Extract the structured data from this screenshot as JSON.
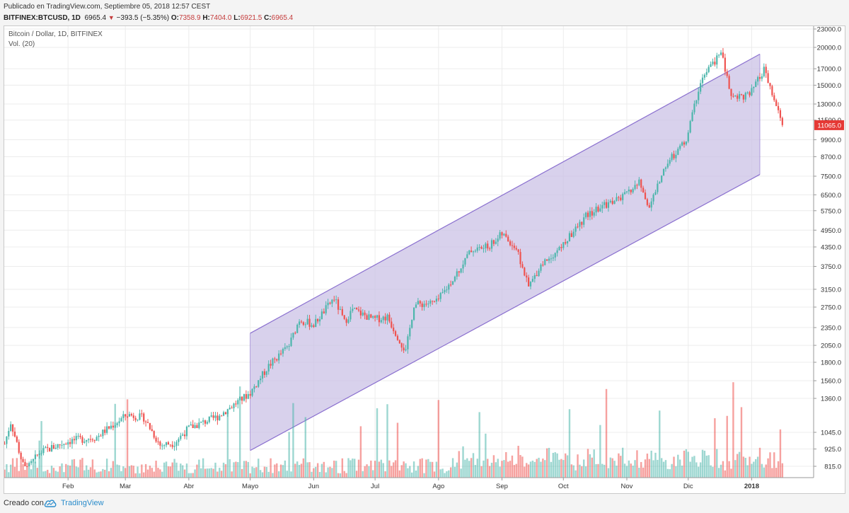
{
  "header": {
    "published": "Publicado en TradingView.com, Septiembre 05, 2018 12:57 CEST",
    "symbol": "BITFINEX:BTCUSD, 1D",
    "last": "6965.4",
    "change": "−393.5 (−5.35%)",
    "open_label": "O:",
    "open": "7358.9",
    "high_label": "H:",
    "high": "7404.0",
    "low_label": "L:",
    "low": "6921.5",
    "close_label": "C:",
    "close": "6965.4"
  },
  "footer": {
    "created_with": "Creado con",
    "brand": "TradingView"
  },
  "colors": {
    "up": "#4db6ac",
    "down": "#ef5350",
    "channel_fill": "#cbc2e6",
    "channel_line": "#8a6fcf",
    "last_price_badge": "#e53935"
  },
  "chart_data": {
    "type": "candlestick",
    "title": "Bitcoin / Dollar, 1D, BITFINEX",
    "volume_label": "Vol. (20)",
    "price_scale": "log",
    "y_tick_labels": [
      "23000.0",
      "20000.0",
      "17000.0",
      "15000.0",
      "13000.0",
      "11500.0",
      "9900.0",
      "8700.0",
      "7500.0",
      "6500.0",
      "5750.0",
      "4950.0",
      "4350.0",
      "3750.0",
      "3150.0",
      "2750.0",
      "2350.0",
      "2050.0",
      "1800.0",
      "1560.0",
      "1360.0",
      "1045.0",
      "925.0",
      "815.0"
    ],
    "x_tick_labels": [
      "Feb",
      "Mar",
      "Abr",
      "Mayo",
      "Jun",
      "Jul",
      "Ago",
      "Sep",
      "Oct",
      "Nov",
      "Dic",
      "2018"
    ],
    "last_price_label": "11065.0",
    "channel": {
      "upper_start": {
        "date": "2017-05-01",
        "price": 2250
      },
      "upper_end": {
        "date": "2018-01-05",
        "price": 19000
      },
      "lower_start": {
        "date": "2017-05-01",
        "price": 915
      },
      "lower_end": {
        "date": "2018-01-05",
        "price": 7600
      }
    },
    "close_keypoints": [
      [
        "2017-01-01",
        960
      ],
      [
        "2017-01-04",
        1130
      ],
      [
        "2017-01-11",
        780
      ],
      [
        "2017-01-18",
        900
      ],
      [
        "2017-02-01",
        980
      ],
      [
        "2017-02-15",
        1010
      ],
      [
        "2017-03-02",
        1200
      ],
      [
        "2017-03-10",
        1170
      ],
      [
        "2017-03-18",
        950
      ],
      [
        "2017-03-25",
        970
      ],
      [
        "2017-04-01",
        1080
      ],
      [
        "2017-04-15",
        1180
      ],
      [
        "2017-05-01",
        1420
      ],
      [
        "2017-05-10",
        1750
      ],
      [
        "2017-05-20",
        2050
      ],
      [
        "2017-05-25",
        2500
      ],
      [
        "2017-06-01",
        2400
      ],
      [
        "2017-06-11",
        2950
      ],
      [
        "2017-06-16",
        2450
      ],
      [
        "2017-06-20",
        2700
      ],
      [
        "2017-06-30",
        2500
      ],
      [
        "2017-07-07",
        2550
      ],
      [
        "2017-07-16",
        1950
      ],
      [
        "2017-07-20",
        2800
      ],
      [
        "2017-07-31",
        2850
      ],
      [
        "2017-08-06",
        3250
      ],
      [
        "2017-08-17",
        4250
      ],
      [
        "2017-08-25",
        4350
      ],
      [
        "2017-09-01",
        4800
      ],
      [
        "2017-09-08",
        4300
      ],
      [
        "2017-09-14",
        3200
      ],
      [
        "2017-09-20",
        3800
      ],
      [
        "2017-09-30",
        4350
      ],
      [
        "2017-10-12",
        5500
      ],
      [
        "2017-10-20",
        5950
      ],
      [
        "2017-10-31",
        6450
      ],
      [
        "2017-11-07",
        7150
      ],
      [
        "2017-11-12",
        5900
      ],
      [
        "2017-11-20",
        8200
      ],
      [
        "2017-11-30",
        9900
      ],
      [
        "2017-12-07",
        15500
      ],
      [
        "2017-12-17",
        19300
      ],
      [
        "2017-12-22",
        13800
      ],
      [
        "2017-12-31",
        13900
      ],
      [
        "2018-01-07",
        16800
      ],
      [
        "2018-01-16",
        11065
      ]
    ]
  }
}
